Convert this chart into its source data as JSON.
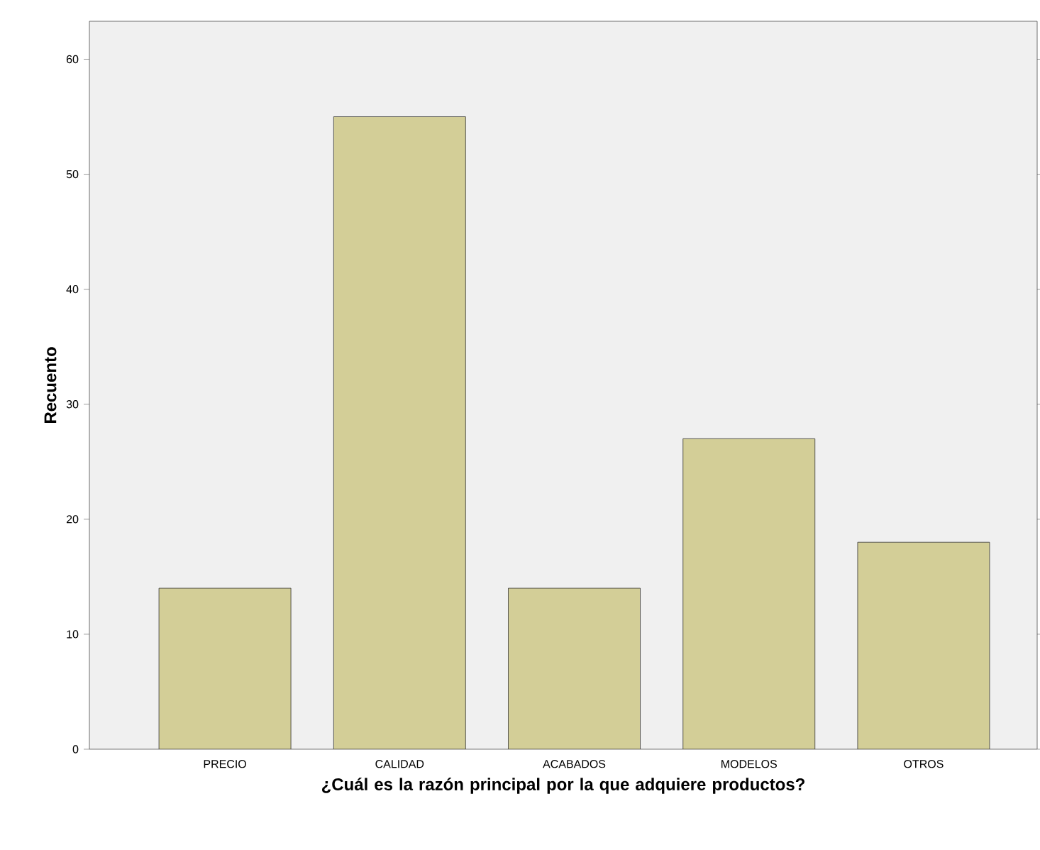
{
  "chart_data": {
    "type": "bar",
    "xlabel": "¿Cuál es la razón principal por la que adquiere productos?",
    "ylabel": "Recuento",
    "categories": [
      "PRECIO",
      "CALIDAD",
      "ACABADOS",
      "MODELOS",
      "OTROS"
    ],
    "values": [
      14,
      55,
      14,
      27,
      18
    ],
    "color": "#d3ce97",
    "ylim": [
      0,
      63.3
    ],
    "yticks": [
      0,
      10,
      20,
      30,
      40,
      50,
      60
    ],
    "grid": false
  }
}
